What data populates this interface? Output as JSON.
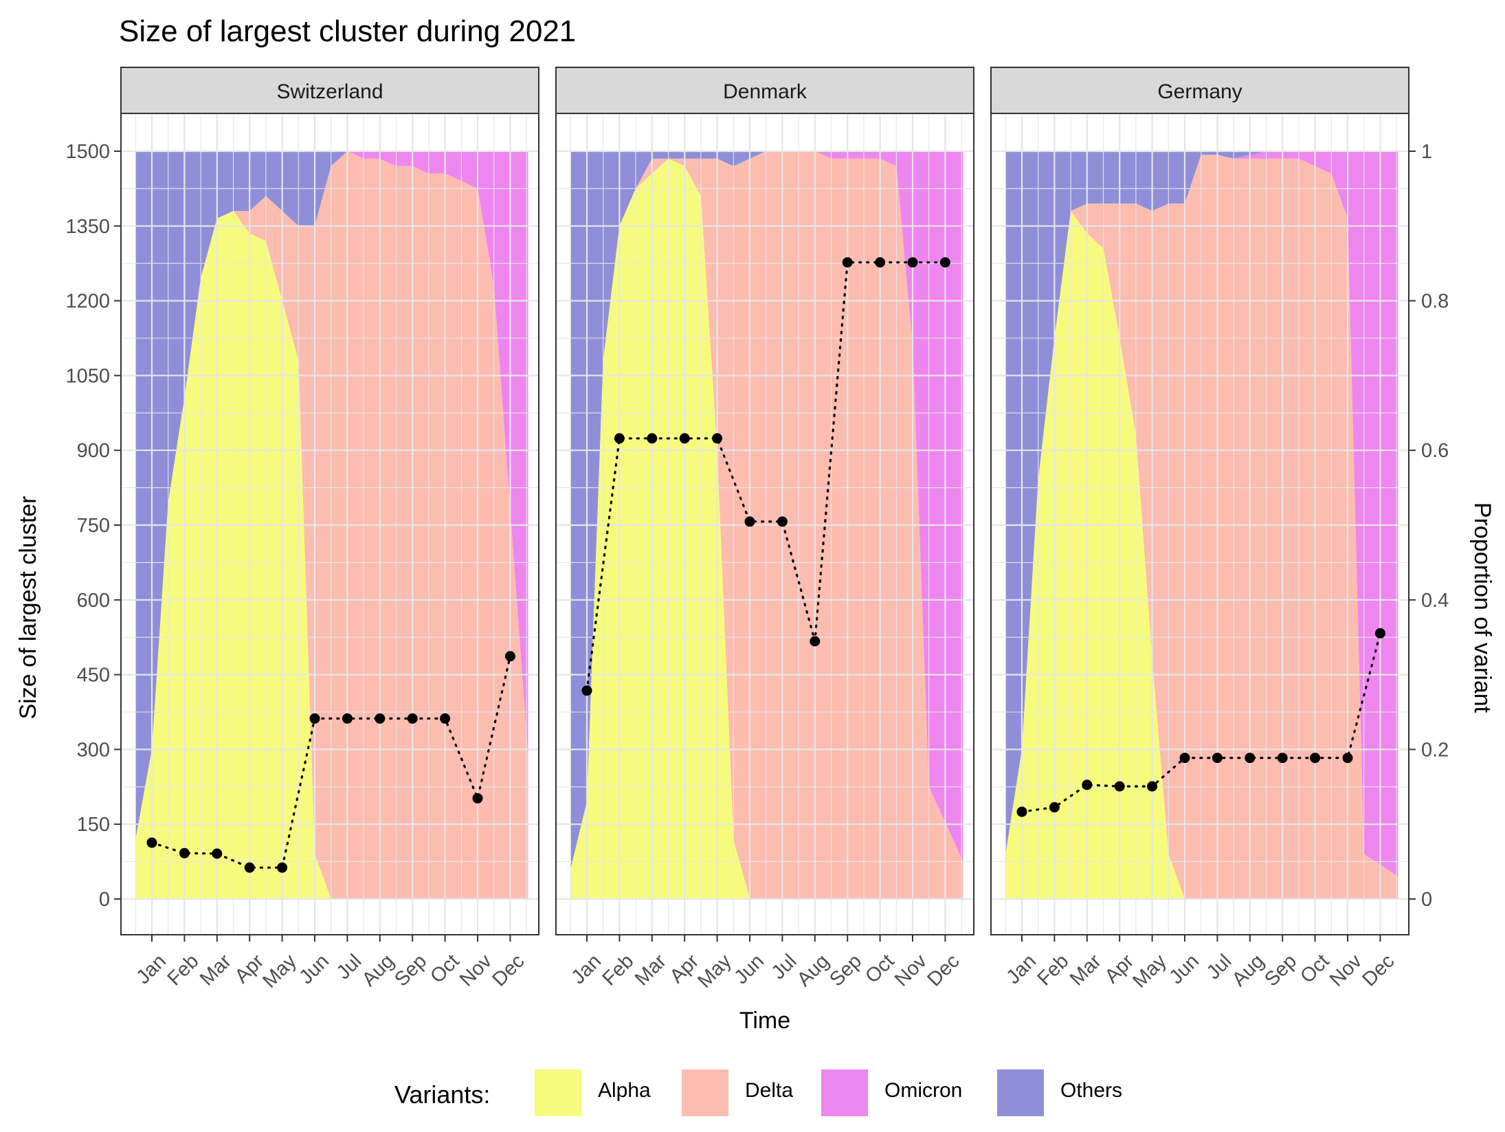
{
  "colors": {
    "alpha": "#F7FB7D",
    "delta": "#FCBCB0",
    "omicron": "#ED87EF",
    "others": "#8E8FD8",
    "strip_fill": "#D9D9D9",
    "grid": "#E6E6E6",
    "frame": "#333333"
  },
  "chart_data": {
    "type": "area",
    "title": "Size of largest cluster during 2021",
    "xlabel": "Time",
    "ylabel": "Size of largest cluster",
    "ylabel_right": "Proportion of variant",
    "ylim": [
      -70,
      1580
    ],
    "y_ticks": [
      0,
      150,
      300,
      450,
      600,
      750,
      900,
      1050,
      1200,
      1350,
      1500
    ],
    "y_tick_labels": [
      "0",
      "150",
      "300",
      "450",
      "600",
      "750",
      "900",
      "1050",
      "1200",
      "1350",
      "1500"
    ],
    "y2_ticks": [
      0,
      0.2,
      0.4,
      0.6,
      0.8,
      1
    ],
    "y2_tick_labels": [
      "0",
      "0.2",
      "0.4",
      "0.6",
      "0.8",
      "1"
    ],
    "months": [
      "Jan",
      "Feb",
      "Mar",
      "Apr",
      "May",
      "Jun",
      "Jul",
      "Aug",
      "Sep",
      "Oct",
      "Nov",
      "Dec"
    ],
    "legend": {
      "title": "Variants:",
      "position": "bottom",
      "items": [
        {
          "label": "Alpha",
          "key": "alpha"
        },
        {
          "label": "Delta",
          "key": "delta"
        },
        {
          "label": "Omicron",
          "key": "omicron"
        },
        {
          "label": "Others",
          "key": "others"
        }
      ]
    },
    "x_sample_months": [
      0,
      0.5,
      1,
      1.5,
      2,
      2.5,
      3,
      3.5,
      4,
      4.5,
      5,
      5.5,
      6,
      6.5,
      7,
      7.5,
      8,
      8.5,
      9,
      9.5,
      10,
      10.5,
      11,
      11.5
    ],
    "panels": [
      {
        "name": "Switzerland",
        "cluster_size": [
          113,
          92,
          91,
          63,
          63,
          362,
          362,
          362,
          362,
          362,
          202,
          487
        ],
        "proportions": {
          "alpha": [
            0.08,
            0.2,
            0.53,
            0.67,
            0.83,
            0.91,
            0.92,
            0.89,
            0.88,
            0.8,
            0.72,
            0.06,
            0.0,
            0.0,
            0.0,
            0.0,
            0.0,
            0.0,
            0.0,
            0.0,
            0.0,
            0.0,
            0.0,
            0.0
          ],
          "delta": [
            0.0,
            0.0,
            0.0,
            0.0,
            0.0,
            0.0,
            0.0,
            0.03,
            0.06,
            0.12,
            0.18,
            0.84,
            0.98,
            1.0,
            0.99,
            0.99,
            0.98,
            0.98,
            0.97,
            0.97,
            0.96,
            0.95,
            0.82,
            0.19
          ],
          "omicron": [
            0.0,
            0.0,
            0.0,
            0.0,
            0.0,
            0.0,
            0.0,
            0.0,
            0.0,
            0.0,
            0.0,
            0.0,
            0.0,
            0.0,
            0.01,
            0.01,
            0.02,
            0.02,
            0.03,
            0.03,
            0.04,
            0.05,
            0.18,
            0.81
          ]
        }
      },
      {
        "name": "Denmark",
        "cluster_size": [
          418,
          924,
          924,
          924,
          924,
          757,
          757,
          517,
          1277,
          1277,
          1277,
          1277
        ],
        "proportions": {
          "alpha": [
            0.04,
            0.13,
            0.72,
            0.9,
            0.95,
            0.97,
            0.99,
            0.98,
            0.94,
            0.6,
            0.08,
            0.0,
            0.0,
            0.0,
            0.0,
            0.0,
            0.0,
            0.0,
            0.0,
            0.0,
            0.0,
            0.0,
            0.0,
            0.0
          ],
          "delta": [
            0.0,
            0.0,
            0.0,
            0.0,
            0.0,
            0.02,
            0.0,
            0.01,
            0.05,
            0.39,
            0.9,
            0.99,
            1.0,
            1.0,
            1.0,
            1.0,
            0.99,
            0.99,
            0.99,
            0.99,
            0.98,
            0.74,
            0.15,
            0.05
          ],
          "omicron": [
            0.0,
            0.0,
            0.0,
            0.0,
            0.0,
            0.0,
            0.0,
            0.0,
            0.0,
            0.0,
            0.0,
            0.0,
            0.0,
            0.0,
            0.0,
            0.0,
            0.01,
            0.01,
            0.01,
            0.01,
            0.02,
            0.26,
            0.85,
            0.95
          ]
        }
      },
      {
        "name": "Germany",
        "cluster_size": [
          175,
          184,
          229,
          226,
          226,
          283,
          283,
          283,
          283,
          283,
          283,
          533
        ],
        "proportions": {
          "alpha": [
            0.06,
            0.2,
            0.56,
            0.75,
            0.92,
            0.89,
            0.87,
            0.75,
            0.62,
            0.32,
            0.06,
            0.0,
            0.0,
            0.0,
            0.0,
            0.0,
            0.0,
            0.0,
            0.0,
            0.0,
            0.0,
            0.0,
            0.0,
            0.0
          ],
          "delta": [
            0.0,
            0.0,
            0.0,
            0.0,
            0.0,
            0.04,
            0.06,
            0.18,
            0.31,
            0.6,
            0.87,
            0.93,
            0.995,
            0.995,
            0.99,
            0.99,
            0.99,
            0.99,
            0.99,
            0.98,
            0.97,
            0.91,
            0.06,
            0.03
          ],
          "omicron": [
            0.0,
            0.0,
            0.0,
            0.0,
            0.0,
            0.0,
            0.0,
            0.0,
            0.0,
            0.0,
            0.0,
            0.0,
            0.0,
            0.0,
            0.0,
            0.005,
            0.01,
            0.01,
            0.01,
            0.02,
            0.03,
            0.09,
            0.94,
            0.97
          ]
        }
      }
    ]
  }
}
